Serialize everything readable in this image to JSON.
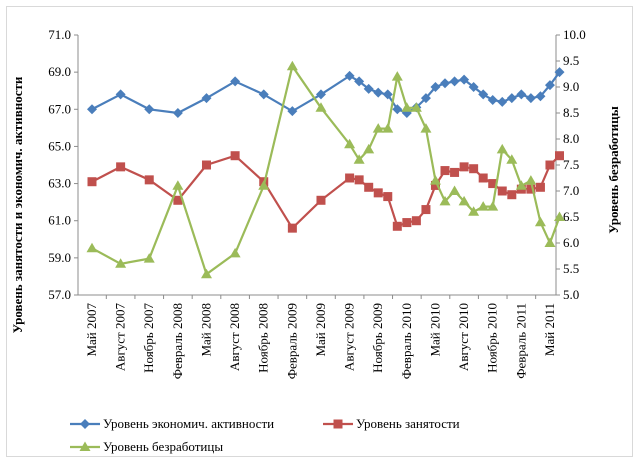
{
  "chart_data": {
    "type": "line",
    "x_tick_labels": [
      "Май 2007",
      "Август 2007",
      "Ноябрь 2007",
      "Февраль 2008",
      "Май 2008",
      "Август 2008",
      "Ноябрь 2008",
      "Февраль 2009",
      "Май 2009",
      "Август 2009",
      "Ноябрь 2009",
      "Февраль 2010",
      "Май 2010",
      "Август 2010",
      "Ноябрь 2010",
      "Февраль 2011",
      "Май 2011"
    ],
    "y_left_label": "Уровень занятости и экономич. активности",
    "y_right_label": "Уровень безработицы",
    "y_left_range": [
      57.0,
      71.0
    ],
    "y_left_ticks": [
      "57.0",
      "59.0",
      "61.0",
      "63.0",
      "65.0",
      "67.0",
      "69.0",
      "71.0"
    ],
    "y_right_range": [
      5.0,
      10.0
    ],
    "y_right_ticks": [
      "5.0",
      "5.5",
      "6.0",
      "6.5",
      "7.0",
      "7.5",
      "8.0",
      "8.5",
      "9.0",
      "9.5",
      "10.0"
    ],
    "grid": false,
    "legend_position": "bottom",
    "series": [
      {
        "name": "Уровень экономич. активности",
        "axis": "left",
        "color": "#4a7ebb",
        "marker": "diamond",
        "x": [
          0,
          1,
          2,
          3,
          4,
          5,
          6,
          7,
          8,
          9,
          9.333,
          9.667,
          10,
          10.333,
          10.667,
          11,
          11.333,
          11.667,
          12,
          12.333,
          12.667,
          13,
          13.333,
          13.667,
          14,
          14.333,
          14.667,
          15,
          15.333,
          15.667,
          16,
          16.333
        ],
        "values": [
          67.0,
          67.8,
          67.0,
          66.8,
          67.6,
          68.5,
          67.8,
          66.9,
          67.8,
          68.8,
          68.5,
          68.1,
          67.9,
          67.8,
          67.0,
          66.8,
          67.1,
          67.6,
          68.2,
          68.4,
          68.5,
          68.6,
          68.2,
          67.8,
          67.5,
          67.4,
          67.6,
          67.8,
          67.6,
          67.7,
          68.3,
          69.0
        ]
      },
      {
        "name": "Уровень занятости",
        "axis": "left",
        "color": "#c0504d",
        "marker": "square",
        "x": [
          0,
          1,
          2,
          3,
          4,
          5,
          6,
          7,
          8,
          9,
          9.333,
          9.667,
          10,
          10.333,
          10.667,
          11,
          11.333,
          11.667,
          12,
          12.333,
          12.667,
          13,
          13.333,
          13.667,
          14,
          14.333,
          14.667,
          15,
          15.333,
          15.667,
          16,
          16.333
        ],
        "values": [
          63.1,
          63.9,
          63.2,
          62.1,
          64.0,
          64.5,
          63.1,
          60.6,
          62.1,
          63.3,
          63.2,
          62.8,
          62.5,
          62.3,
          60.7,
          60.9,
          61.0,
          61.6,
          62.9,
          63.7,
          63.6,
          63.9,
          63.8,
          63.3,
          63.0,
          62.6,
          62.4,
          62.7,
          62.7,
          62.8,
          64.0,
          64.5
        ]
      },
      {
        "name": "Уровень безработицы",
        "axis": "right",
        "color": "#9bbb59",
        "marker": "triangle",
        "x": [
          0,
          1,
          2,
          3,
          4,
          5,
          6,
          7,
          8,
          9,
          9.333,
          9.667,
          10,
          10.333,
          10.667,
          11,
          11.333,
          11.667,
          12,
          12.333,
          12.667,
          13,
          13.333,
          13.667,
          14,
          14.333,
          14.667,
          15,
          15.333,
          15.667,
          16,
          16.333
        ],
        "values": [
          5.9,
          5.6,
          5.7,
          7.1,
          5.4,
          5.8,
          7.1,
          9.4,
          8.6,
          7.9,
          7.6,
          7.8,
          8.2,
          8.2,
          9.2,
          8.6,
          8.6,
          8.2,
          7.2,
          6.8,
          7.0,
          6.8,
          6.6,
          6.7,
          6.7,
          7.8,
          7.6,
          7.1,
          7.2,
          6.4,
          6.0,
          6.5
        ]
      }
    ]
  }
}
